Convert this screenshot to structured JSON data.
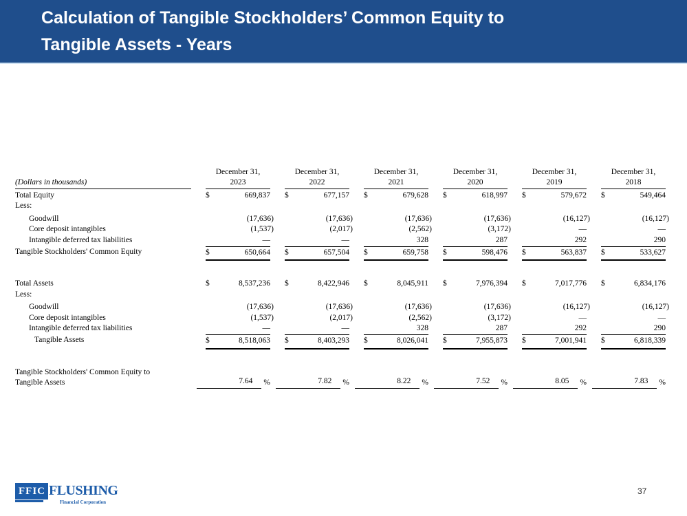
{
  "slide": {
    "title_line1": "Calculation of Tangible Stockholders’ Common Equity to",
    "title_line2": "Tangible Assets - Years",
    "page_number": "37"
  },
  "colors": {
    "header_bg": "#1F4E8C",
    "logo_blue": "#1D5CA9"
  },
  "logo": {
    "acronym": "FFIC",
    "name": "FLUSHING",
    "tagline": "Financial Corporation"
  },
  "table": {
    "units_note": "(Dollars in thousands)",
    "date_label": "December 31,",
    "percent_symbol": "%",
    "years": [
      "2023",
      "2022",
      "2021",
      "2020",
      "2019",
      "2018"
    ],
    "rows": [
      {
        "label": "Total Equity",
        "dollar": "$",
        "values": [
          "669,837",
          "677,157",
          "679,628",
          "618,997",
          "579,672",
          "549,464"
        ]
      },
      {
        "label": "Less:"
      },
      {
        "label": "Goodwill",
        "values": [
          "(17,636)",
          "(17,636)",
          "(17,636)",
          "(17,636)",
          "(16,127)",
          "(16,127)"
        ]
      },
      {
        "label": "Core deposit intangibles",
        "values": [
          "(1,537)",
          "(2,017)",
          "(2,562)",
          "(3,172)",
          "—",
          "—"
        ]
      },
      {
        "label": "Intangible deferred tax liabilities",
        "values": [
          "—",
          "—",
          "328",
          "287",
          "292",
          "290"
        ]
      },
      {
        "label": "Tangible Stockholders' Common Equity",
        "dollar": "$",
        "values": [
          "650,664",
          "657,504",
          "659,758",
          "598,476",
          "563,837",
          "533,627"
        ]
      },
      {
        "label": "Total Assets",
        "dollar": "$",
        "values": [
          "8,537,236",
          "8,422,946",
          "8,045,911",
          "7,976,394",
          "7,017,776",
          "6,834,176"
        ]
      },
      {
        "label": "Less:"
      },
      {
        "label": "Goodwill",
        "values": [
          "(17,636)",
          "(17,636)",
          "(17,636)",
          "(17,636)",
          "(16,127)",
          "(16,127)"
        ]
      },
      {
        "label": "Core deposit intangibles",
        "values": [
          "(1,537)",
          "(2,017)",
          "(2,562)",
          "(3,172)",
          "—",
          "—"
        ]
      },
      {
        "label": "Intangible deferred tax liabilities",
        "values": [
          "—",
          "—",
          "328",
          "287",
          "292",
          "290"
        ]
      },
      {
        "label": "Tangible Assets",
        "dollar": "$",
        "values": [
          "8,518,063",
          "8,403,293",
          "8,026,041",
          "7,955,873",
          "7,001,941",
          "6,818,339"
        ]
      },
      {
        "label": "Tangible Stockholders' Common Equity to",
        "label2": "Tangible Assets",
        "values": [
          "7.64",
          "7.82",
          "8.22",
          "7.52",
          "8.05",
          "7.83"
        ]
      }
    ]
  }
}
